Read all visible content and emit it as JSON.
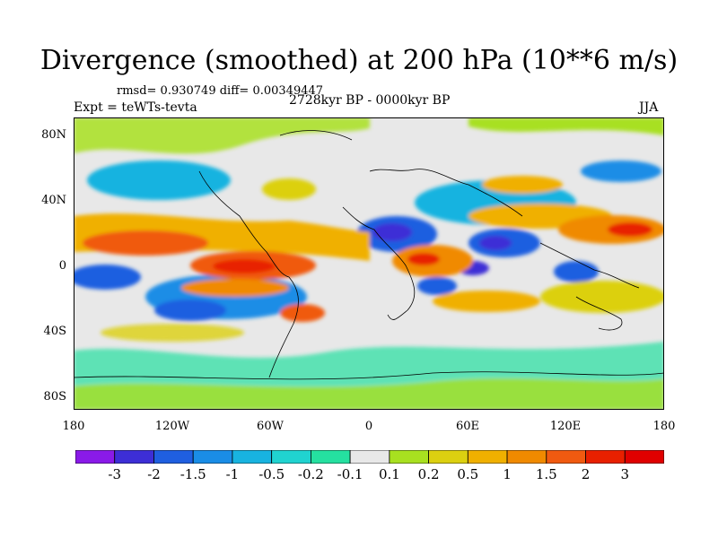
{
  "title": "Divergence (smoothed) at 200 hPa (10**6 m/s)",
  "stats": "rmsd= 0.930749 diff= 0.00349447",
  "experiment": "Expt = teWTs-tevta",
  "period": "2728kyr BP - 0000kyr BP",
  "season": "JJA",
  "lat_ticks": [
    "80N",
    "40N",
    "0",
    "40S",
    "80S"
  ],
  "lon_ticks": [
    "180",
    "120W",
    "60W",
    "0",
    "60E",
    "120E",
    "180"
  ],
  "colorbar": {
    "labels": [
      "-3",
      "-2",
      "-1.5",
      "-1",
      "-0.5",
      "-0.2",
      "-0.1",
      "0.1",
      "0.2",
      "0.5",
      "1",
      "1.5",
      "2",
      "3"
    ],
    "colors": [
      "#8a1ae8",
      "#3d2ed6",
      "#1f5fe0",
      "#1a8de6",
      "#18b3e0",
      "#20d3d0",
      "#25e0a0",
      "#e8e8e8",
      "#a8e020",
      "#dcd010",
      "#f0b000",
      "#f08a00",
      "#f05a10",
      "#e82000",
      "#e00000"
    ]
  }
}
